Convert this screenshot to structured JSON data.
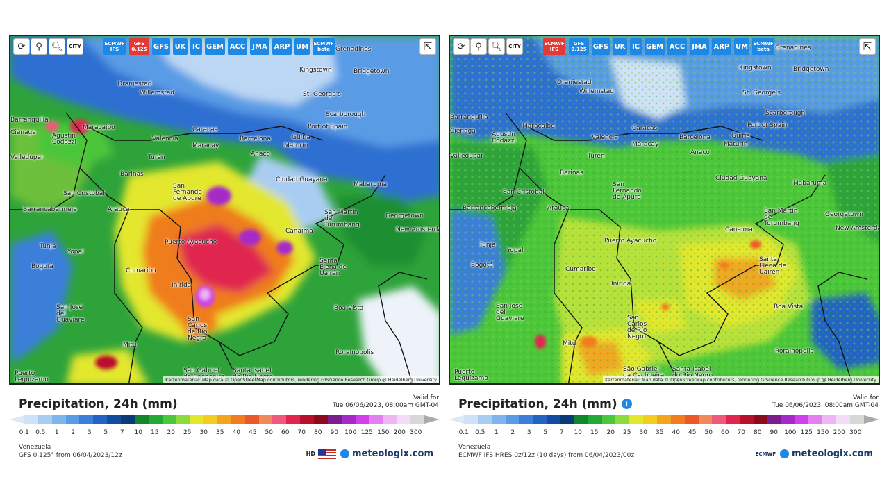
{
  "toolbar": {
    "reset_icon": "refresh-icon",
    "locate_icon": "location-pin-icon",
    "zoom_icon": "zoom-icon",
    "city_label": "CITY",
    "share_icon": "share-icon"
  },
  "left_panel": {
    "models": [
      {
        "label": "ECMWF IFS",
        "active": false,
        "two_line": true
      },
      {
        "label": "GFS 0.125",
        "active": true,
        "two_line": true
      },
      {
        "label": "GFS",
        "active": false,
        "two_line": false
      },
      {
        "label": "UK",
        "active": false,
        "two_line": false
      },
      {
        "label": "IC",
        "active": false,
        "two_line": false
      },
      {
        "label": "GEM",
        "active": false,
        "two_line": false
      },
      {
        "label": "ACC",
        "active": false,
        "two_line": false
      },
      {
        "label": "JMA",
        "active": false,
        "two_line": false
      },
      {
        "label": "ARP",
        "active": false,
        "two_line": false
      },
      {
        "label": "UM",
        "active": false,
        "two_line": false
      },
      {
        "label": "ECMWF beta",
        "active": false,
        "two_line": true
      }
    ],
    "title": "Precipitation, 24h (mm)",
    "valid_label": "Valid for",
    "valid_time": "Tue 06/06/2023, 08:00am GMT-04",
    "region": "Venezuela",
    "run_info": "GFS 0.125° from 06/04/2023/12z",
    "brand": "meteologix.com",
    "hd_label": "HD"
  },
  "right_panel": {
    "models": [
      {
        "label": "ECMWF IFS",
        "active": true,
        "two_line": true
      },
      {
        "label": "GFS 0.125",
        "active": false,
        "two_line": true
      },
      {
        "label": "GFS",
        "active": false,
        "two_line": false
      },
      {
        "label": "UK",
        "active": false,
        "two_line": false
      },
      {
        "label": "IC",
        "active": false,
        "two_line": false
      },
      {
        "label": "GEM",
        "active": false,
        "two_line": false
      },
      {
        "label": "ACC",
        "active": false,
        "two_line": false
      },
      {
        "label": "JMA",
        "active": false,
        "two_line": false
      },
      {
        "label": "ARP",
        "active": false,
        "two_line": false
      },
      {
        "label": "UM",
        "active": false,
        "two_line": false
      },
      {
        "label": "ECMWF beta",
        "active": false,
        "two_line": true
      }
    ],
    "title": "Precipitation, 24h (mm)",
    "valid_label": "Valid for",
    "valid_time": "Tue 06/06/2023, 08:00am GMT-04",
    "region": "Venezuela",
    "run_info": "ECMWF IFS HRES 0z/12z (10 days) from 06/04/2023/00z",
    "brand": "meteologix.com",
    "ecmwf_label": "ECMWF"
  },
  "attribution": "Kartenmaterial: Map data © OpenStreetMap contributors, rendering GIScience Research Group @ Heidelberg University",
  "places": [
    "Kingstown",
    "Bridgetown",
    "Oranjestad",
    "Willemstad",
    "St. George's",
    "Scarborough",
    "Port of Spain",
    "Maracaibo",
    "Caracas",
    "Barcelona",
    "Güiria",
    "Valencia",
    "Maracay",
    "Maturín",
    "Anaco",
    "Turén",
    "Agustín Codazzi",
    "Barinas",
    "Ciudad Guayana",
    "Mabaruma",
    "San Fernando de Apure",
    "San Cristóbal",
    "Arauca",
    "Barrancabermeja",
    "Georgetown",
    "New Amsterdam",
    "San Martín de Turumbang",
    "Canaima",
    "Tunja",
    "Yopal",
    "Puerto Ayacucho",
    "Bogotá",
    "Cumaribo",
    "Santa Elena de Uairén",
    "Inírida",
    "San José del Guaviare",
    "Boa Vista",
    "San Carlos de Río Negro",
    "Mitú",
    "Rorainópolis",
    "São Gabriel da Cachoeira",
    "Santa Isabel do Rio Negro",
    "Puerto Leguízamo",
    "Barranquilla",
    "Valledupar",
    "Ciénaga",
    "Grenadines"
  ],
  "colors": {
    "model_button": "#1e88e5",
    "model_button_active": "#e53935",
    "brand_text": "#1a3a6b"
  },
  "legend": {
    "values": [
      "0.1",
      "0.5",
      "1",
      "2",
      "3",
      "5",
      "7",
      "10",
      "15",
      "20",
      "25",
      "30",
      "35",
      "40",
      "45",
      "50",
      "60",
      "70",
      "80",
      "90",
      "100",
      "125",
      "150",
      "200",
      "300"
    ],
    "colors": [
      "#cfe2f7",
      "#a9cdf2",
      "#7fb5ec",
      "#5a9be5",
      "#3b7fd9",
      "#2164c4",
      "#124c9e",
      "#0b3a78",
      "#12862a",
      "#22a834",
      "#4cc63a",
      "#8cda3c",
      "#e3e72d",
      "#f3cd22",
      "#f2a620",
      "#ef7d1f",
      "#e95a28",
      "#f08a5c",
      "#ef5a7c",
      "#e0264f",
      "#b9102a",
      "#8c0a1c",
      "#7a1e8e",
      "#a62ac8",
      "#d040ec",
      "#e47ff0",
      "#efb6f3",
      "#f3dcf7",
      "#d8d8d8"
    ]
  }
}
